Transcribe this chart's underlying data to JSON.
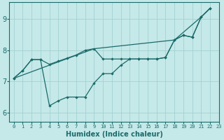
{
  "title": "",
  "xlabel": "Humidex (Indice chaleur)",
  "bg_color": "#c5e8e8",
  "grid_color": "#9ecece",
  "line_color": "#1a6b6b",
  "xlim": [
    -0.5,
    23
  ],
  "ylim": [
    5.7,
    9.55
  ],
  "yticks": [
    6,
    7,
    8,
    9
  ],
  "xticks": [
    0,
    1,
    2,
    3,
    4,
    5,
    6,
    7,
    8,
    9,
    10,
    11,
    12,
    13,
    14,
    15,
    16,
    17,
    18,
    19,
    20,
    21,
    22,
    23
  ],
  "line1_x": [
    0,
    1,
    2,
    3,
    4,
    5,
    6,
    7,
    8,
    9,
    10,
    11,
    12,
    13,
    14,
    15,
    16,
    17,
    18,
    19,
    20,
    21,
    22
  ],
  "line1_y": [
    7.1,
    7.35,
    7.7,
    7.7,
    7.55,
    7.65,
    7.75,
    7.85,
    8.0,
    8.05,
    7.72,
    7.72,
    7.72,
    7.72,
    7.72,
    7.72,
    7.72,
    7.77,
    8.33,
    8.48,
    8.42,
    9.07,
    9.35
  ],
  "line2_x": [
    0,
    1,
    2,
    3,
    4,
    5,
    6,
    7,
    8,
    9,
    10,
    11,
    12,
    13,
    14,
    15,
    16,
    17,
    18,
    19,
    20,
    21,
    22
  ],
  "line2_y": [
    7.1,
    7.35,
    7.7,
    7.7,
    6.22,
    6.38,
    6.5,
    6.5,
    6.5,
    6.95,
    7.25,
    7.25,
    7.52,
    7.72,
    7.72,
    7.72,
    7.72,
    7.77,
    8.33,
    8.48,
    8.42,
    9.07,
    9.35
  ],
  "line3_x": [
    0,
    9,
    18,
    21,
    22
  ],
  "line3_y": [
    7.1,
    8.05,
    8.33,
    9.07,
    9.35
  ],
  "marker": "D",
  "marker_size": 2.2,
  "lw": 0.9
}
